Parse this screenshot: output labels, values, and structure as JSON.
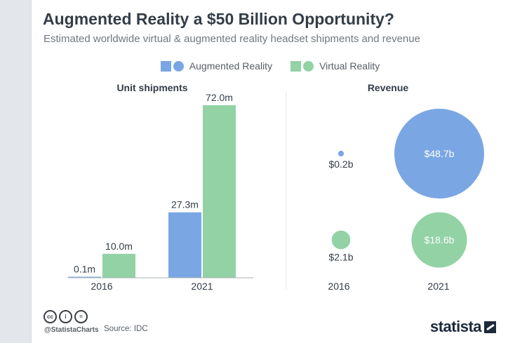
{
  "title": "Augmented Reality a $50 Billion Opportunity?",
  "subtitle": "Estimated worldwide virtual & augmented reality headset shipments and revenue",
  "colors": {
    "ar": "#7aa7e3",
    "vr": "#92d2a5",
    "text": "#333d47",
    "axis": "#aab0b6"
  },
  "legend": [
    {
      "label": "Augmented Reality",
      "color": "#7aa7e3"
    },
    {
      "label": "Virtual Reality",
      "color": "#92d2a5"
    }
  ],
  "chart_data": [
    {
      "type": "bar",
      "title": "Unit shipments",
      "categories": [
        "2016",
        "2021"
      ],
      "series": [
        {
          "name": "Augmented Reality",
          "values": [
            0.1,
            27.3
          ],
          "labels": [
            "0.1m",
            "27.3m"
          ]
        },
        {
          "name": "Virtual Reality",
          "values": [
            10.0,
            72.0
          ],
          "labels": [
            "10.0m",
            "72.0m"
          ]
        }
      ],
      "ylim": [
        0,
        72
      ],
      "xlabel": "",
      "ylabel": ""
    },
    {
      "type": "scatter",
      "title": "Revenue",
      "categories": [
        "2016",
        "2021"
      ],
      "series": [
        {
          "name": "Augmented Reality",
          "values": [
            0.2,
            48.7
          ],
          "labels": [
            "$0.2b",
            "$48.7b"
          ]
        },
        {
          "name": "Virtual Reality",
          "values": [
            2.1,
            18.6
          ],
          "labels": [
            "$2.1b",
            "$18.6b"
          ]
        }
      ],
      "size_encodes": "revenue (bubble area)"
    }
  ],
  "footer": {
    "cc_icons": [
      "cc-icon",
      "by-icon",
      "nd-icon"
    ],
    "cc_glyphs": [
      "cc",
      "i",
      "="
    ],
    "handle": "@StatistaCharts",
    "source": "Source: IDC",
    "brand": "statista"
  }
}
